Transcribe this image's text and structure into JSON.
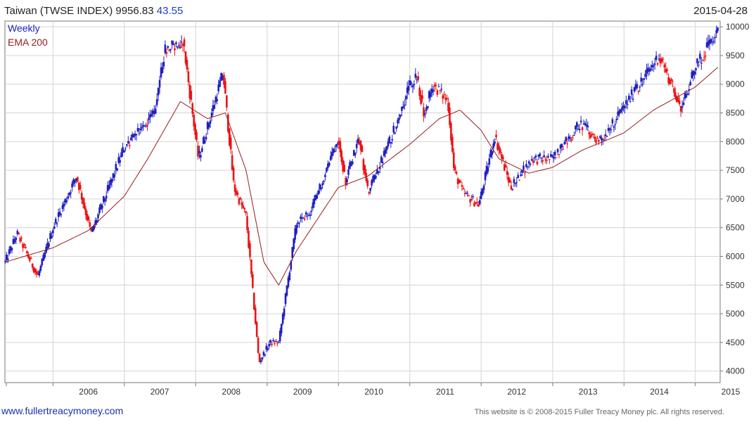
{
  "header": {
    "title": "Taiwan (TWSE INDEX)",
    "last_value": "9956.83",
    "change": "43.55",
    "date": "2015-04-28"
  },
  "footer": {
    "site": "www.fullertreacymoney.com",
    "copyright": "This website is © 2008-2015 Fuller Treacy Money plc. All rights reserved."
  },
  "colors": {
    "up": "#1f1fbf",
    "down": "#ee1111",
    "ema": "#9b1c1c",
    "grid": "#d4d4d4"
  },
  "chart_data": {
    "type": "line",
    "subtype": "candlestick",
    "title": "Taiwan (TWSE INDEX)",
    "xlabel": "",
    "ylabel": "",
    "x_tick_labels": [
      "2006",
      "2007",
      "2008",
      "2009",
      "2010",
      "2011",
      "2012",
      "2013",
      "2014",
      "2015"
    ],
    "y_tick_labels": [
      4000,
      4500,
      5000,
      5500,
      6000,
      6500,
      7000,
      7500,
      8000,
      8500,
      9000,
      9500,
      10000
    ],
    "xlim": [
      "2005-04-30",
      "2015-05-08"
    ],
    "ylim": [
      3800,
      10100
    ],
    "grid": true,
    "legend_position": "top-left",
    "series": [
      {
        "name": "Weekly",
        "style": "candles",
        "x": [
          "2005-05-01",
          "2005-07-01",
          "2005-10-15",
          "2006-01-01",
          "2006-05-01",
          "2006-07-15",
          "2006-12-31",
          "2007-06-01",
          "2007-07-27",
          "2007-10-29",
          "2008-01-15",
          "2008-05-20",
          "2008-07-15",
          "2008-09-15",
          "2008-11-20",
          "2009-01-15",
          "2009-03-01",
          "2009-06-01",
          "2009-08-15",
          "2009-12-31",
          "2010-02-05",
          "2010-04-15",
          "2010-06-01",
          "2010-10-01",
          "2010-12-31",
          "2011-02-05",
          "2011-03-15",
          "2011-05-01",
          "2011-07-15",
          "2011-08-15",
          "2011-10-01",
          "2011-12-20",
          "2012-03-10",
          "2012-06-01",
          "2012-09-15",
          "2012-12-31",
          "2013-05-20",
          "2013-08-31",
          "2013-12-31",
          "2014-06-30",
          "2014-10-20",
          "2015-01-01",
          "2015-04-28"
        ],
        "values": [
          5900,
          6400,
          5650,
          6500,
          7400,
          6400,
          7900,
          8500,
          9600,
          9750,
          7700,
          9200,
          7200,
          6700,
          4150,
          4500,
          4500,
          6600,
          6800,
          8100,
          7300,
          8100,
          7100,
          8100,
          9000,
          9100,
          8500,
          9000,
          8700,
          7500,
          7100,
          6900,
          8100,
          7200,
          7700,
          7700,
          8300,
          8000,
          8600,
          9500,
          8600,
          9300,
          9956.83
        ]
      },
      {
        "name": "EMA 200",
        "style": "line",
        "x": [
          "2005-05-01",
          "2006-01-01",
          "2006-07-01",
          "2007-01-01",
          "2007-05-01",
          "2007-10-15",
          "2008-03-01",
          "2008-06-01",
          "2008-09-15",
          "2008-12-15",
          "2009-03-01",
          "2009-06-01",
          "2009-12-31",
          "2010-06-01",
          "2010-12-31",
          "2011-06-01",
          "2011-09-15",
          "2011-12-31",
          "2012-04-01",
          "2012-09-01",
          "2012-12-31",
          "2013-06-01",
          "2013-12-31",
          "2014-06-01",
          "2014-12-31",
          "2015-04-28"
        ],
        "values": [
          5900,
          6150,
          6450,
          7050,
          7700,
          8700,
          8400,
          8500,
          7500,
          5900,
          5500,
          6100,
          7200,
          7400,
          7950,
          8400,
          8550,
          8200,
          7700,
          7450,
          7550,
          7850,
          8150,
          8550,
          8950,
          9300
        ]
      }
    ]
  }
}
